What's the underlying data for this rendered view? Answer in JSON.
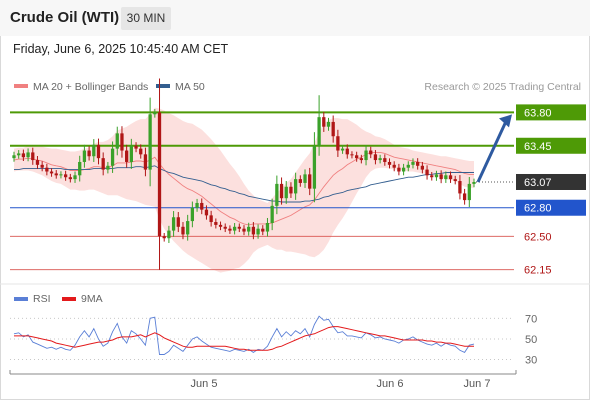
{
  "header": {
    "title": "Crude Oil (WTI)",
    "timeframe": "30 MIN"
  },
  "datetime": "Friday, June 6, 2025 10:45:40 AM CET",
  "legend": [
    {
      "label": "MA 20 + Bollinger Bands",
      "color": "#f08080"
    },
    {
      "label": "MA 50",
      "color": "#335e8f"
    }
  ],
  "rsi_legend": [
    {
      "label": "RSI",
      "color": "#5a7fd6"
    },
    {
      "label": "9MA",
      "color": "#e31a1c"
    }
  ],
  "copyright": "Research © 2025 Trading Central",
  "colors": {
    "up": "#3aa12a",
    "down": "#b01616",
    "resistance": "#4e9a06",
    "support": "#2255cc",
    "support2": "#d9534f",
    "arrow": "#2e5aa0"
  },
  "chart_data": [
    {
      "type": "line",
      "subtype": "candlestick",
      "ylim": [
        62.0,
        63.93
      ],
      "x_tick_labels": [
        "Jun 5",
        "Jun 6",
        "Jun 7"
      ],
      "current_price": "63.07",
      "levels": [
        {
          "value": 63.8,
          "label": "63.80",
          "kind": "resistance"
        },
        {
          "value": 63.45,
          "label": "63.45",
          "kind": "resistance"
        },
        {
          "value": 63.07,
          "label": "63.07",
          "kind": "current"
        },
        {
          "value": 62.8,
          "label": "62.80",
          "kind": "support"
        },
        {
          "value": 62.5,
          "label": "62.50",
          "kind": "support2"
        },
        {
          "value": 62.15,
          "label": "62.15",
          "kind": "support2"
        }
      ],
      "close": [
        63.35,
        63.37,
        63.33,
        63.38,
        63.3,
        63.25,
        63.22,
        63.18,
        63.16,
        63.14,
        63.15,
        63.12,
        63.1,
        63.14,
        63.28,
        63.4,
        63.34,
        63.46,
        63.32,
        63.2,
        63.24,
        63.42,
        63.58,
        63.4,
        63.28,
        63.45,
        63.42,
        63.36,
        63.2,
        63.78,
        63.8,
        62.5,
        62.48,
        62.56,
        62.7,
        62.6,
        62.52,
        62.66,
        62.8,
        62.85,
        62.78,
        62.72,
        62.65,
        62.62,
        62.6,
        62.58,
        62.56,
        62.6,
        62.58,
        62.55,
        62.6,
        62.52,
        62.58,
        62.55,
        62.64,
        62.82,
        63.05,
        62.9,
        63.02,
        62.95,
        63.1,
        63.06,
        63.15,
        63.0,
        63.45,
        63.75,
        63.65,
        63.7,
        63.55,
        63.4,
        63.42,
        63.36,
        63.35,
        63.32,
        63.3,
        63.4,
        63.36,
        63.3,
        63.32,
        63.28,
        63.25,
        63.22,
        63.18,
        63.22,
        63.25,
        63.28,
        63.24,
        63.2,
        63.14,
        63.12,
        63.15,
        63.1,
        63.14,
        63.1,
        63.08,
        62.95,
        62.88,
        63.05,
        63.07
      ],
      "ma20": [
        63.3,
        63.31,
        63.31,
        63.32,
        63.31,
        63.3,
        63.29,
        63.27,
        63.25,
        63.24,
        63.23,
        63.21,
        63.19,
        63.19,
        63.19,
        63.2,
        63.21,
        63.23,
        63.23,
        63.22,
        63.22,
        63.24,
        63.27,
        63.27,
        63.27,
        63.28,
        63.29,
        63.29,
        63.28,
        63.3,
        63.33,
        63.26,
        63.2,
        63.15,
        63.11,
        63.07,
        63.03,
        63.0,
        62.98,
        62.95,
        62.92,
        62.88,
        62.84,
        62.8,
        62.76,
        62.73,
        62.7,
        62.68,
        62.65,
        62.63,
        62.62,
        62.63,
        62.63,
        62.63,
        62.63,
        62.64,
        62.66,
        62.68,
        62.7,
        62.72,
        62.75,
        62.78,
        62.81,
        62.83,
        62.88,
        62.95,
        63.02,
        63.08,
        63.14,
        63.18,
        63.21,
        63.25,
        63.28,
        63.31,
        63.33,
        63.36,
        63.38,
        63.38,
        63.38,
        63.37,
        63.35,
        63.33,
        63.32,
        63.31,
        63.3,
        63.29,
        63.28,
        63.27,
        63.26,
        63.25,
        63.24,
        63.23,
        63.22,
        63.21,
        63.2,
        63.18,
        63.16,
        63.15,
        63.15
      ],
      "ma50": [
        63.2,
        63.2,
        63.21,
        63.21,
        63.21,
        63.21,
        63.21,
        63.21,
        63.21,
        63.21,
        63.21,
        63.2,
        63.2,
        63.2,
        63.2,
        63.2,
        63.2,
        63.21,
        63.21,
        63.21,
        63.21,
        63.21,
        63.22,
        63.22,
        63.22,
        63.22,
        63.23,
        63.23,
        63.22,
        63.23,
        63.24,
        63.21,
        63.19,
        63.17,
        63.16,
        63.14,
        63.12,
        63.11,
        63.1,
        63.09,
        63.08,
        63.06,
        63.04,
        63.03,
        63.01,
        63.0,
        62.98,
        62.97,
        62.95,
        62.94,
        62.92,
        62.91,
        62.9,
        62.89,
        62.88,
        62.87,
        62.87,
        62.86,
        62.86,
        62.86,
        62.86,
        62.86,
        62.87,
        62.87,
        62.88,
        62.89,
        62.91,
        62.92,
        62.94,
        62.95,
        62.96,
        62.98,
        62.99,
        63.0,
        63.01,
        63.02,
        63.04,
        63.05,
        63.06,
        63.07,
        63.08,
        63.09,
        63.1,
        63.11,
        63.12,
        63.12,
        63.13,
        63.14,
        63.15,
        63.15,
        63.16,
        63.16,
        63.17,
        63.17,
        63.17,
        63.17,
        63.17,
        63.17,
        63.17
      ],
      "bb_width": [
        0.12,
        0.12,
        0.12,
        0.13,
        0.13,
        0.14,
        0.15,
        0.16,
        0.17,
        0.18,
        0.18,
        0.19,
        0.2,
        0.2,
        0.21,
        0.22,
        0.22,
        0.24,
        0.26,
        0.27,
        0.29,
        0.31,
        0.34,
        0.36,
        0.38,
        0.4,
        0.42,
        0.44,
        0.45,
        0.48,
        0.52,
        0.58,
        0.62,
        0.64,
        0.66,
        0.67,
        0.68,
        0.69,
        0.7,
        0.7,
        0.7,
        0.69,
        0.68,
        0.66,
        0.64,
        0.6,
        0.56,
        0.52,
        0.48,
        0.42,
        0.36,
        0.3,
        0.26,
        0.24,
        0.22,
        0.26,
        0.3,
        0.32,
        0.36,
        0.38,
        0.42,
        0.46,
        0.5,
        0.54,
        0.6,
        0.64,
        0.66,
        0.64,
        0.6,
        0.56,
        0.52,
        0.48,
        0.42,
        0.36,
        0.3,
        0.24,
        0.2,
        0.17,
        0.16,
        0.15,
        0.14,
        0.13,
        0.12,
        0.12,
        0.12,
        0.11,
        0.11,
        0.11,
        0.11,
        0.11,
        0.11,
        0.11,
        0.12,
        0.12,
        0.12,
        0.13,
        0.14,
        0.14,
        0.14
      ]
    },
    {
      "type": "line",
      "name": "RSI",
      "y_tick_labels": [
        "70",
        "50",
        "30"
      ],
      "ylim": [
        20,
        78
      ],
      "rsi": [
        55,
        56,
        52,
        54,
        47,
        45,
        43,
        41,
        42,
        40,
        42,
        40,
        39,
        44,
        52,
        58,
        52,
        60,
        50,
        43,
        46,
        57,
        65,
        52,
        46,
        58,
        55,
        50,
        44,
        70,
        71,
        35,
        35,
        38,
        44,
        41,
        38,
        44,
        50,
        52,
        48,
        45,
        42,
        41,
        40,
        39,
        38,
        40,
        39,
        38,
        40,
        37,
        40,
        39,
        43,
        52,
        60,
        52,
        57,
        53,
        58,
        55,
        60,
        52,
        64,
        72,
        68,
        69,
        62,
        56,
        57,
        53,
        53,
        52,
        51,
        56,
        54,
        51,
        52,
        50,
        49,
        48,
        46,
        49,
        50,
        52,
        49,
        47,
        45,
        44,
        46,
        43,
        46,
        44,
        43,
        39,
        37,
        44,
        45
      ],
      "rsi_ma": [
        53,
        53,
        53,
        53,
        52,
        51,
        50,
        49,
        48,
        46,
        45,
        44,
        43,
        42,
        43,
        44,
        45,
        46,
        47,
        47,
        48,
        49,
        51,
        52,
        52,
        52,
        53,
        54,
        52,
        54,
        56,
        54,
        51,
        49,
        47,
        45,
        43,
        42,
        42,
        43,
        43,
        43,
        43,
        43,
        43,
        43,
        42,
        41,
        40,
        40,
        39,
        39,
        39,
        39,
        39,
        40,
        42,
        43,
        45,
        47,
        49,
        51,
        53,
        54,
        55,
        57,
        59,
        61,
        62,
        62,
        61,
        60,
        59,
        58,
        57,
        56,
        55,
        54,
        53,
        53,
        52,
        51,
        50,
        49,
        49,
        49,
        49,
        49,
        48,
        48,
        47,
        47,
        46,
        46,
        45,
        44,
        43,
        43,
        43
      ]
    }
  ]
}
